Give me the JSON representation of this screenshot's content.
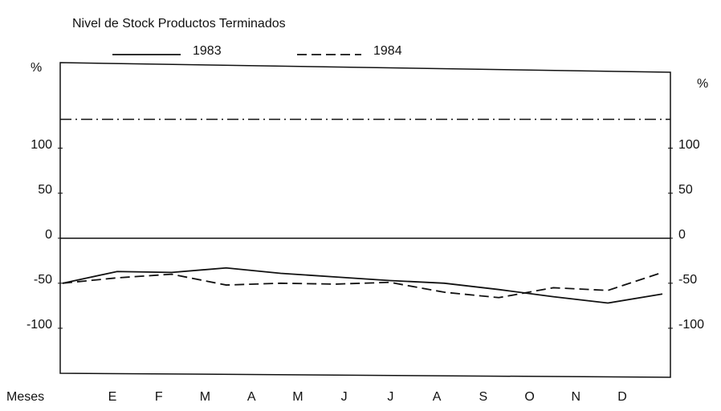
{
  "chart_data": {
    "type": "line",
    "title": "Nivel de Stock Productos Terminados",
    "ylabel": "%",
    "y2label": "%",
    "xlabel": "Meses",
    "categories": [
      "E",
      "F",
      "M",
      "A",
      "M",
      "J",
      "J",
      "A",
      "S",
      "O",
      "N",
      "D"
    ],
    "series": [
      {
        "name": "1983",
        "color": "#111111",
        "style": "solid",
        "values": [
          -50,
          -37,
          -38,
          -33,
          -39,
          -43,
          -47,
          -50,
          -57,
          -65,
          -72,
          -62
        ]
      },
      {
        "name": "1984",
        "color": "#111111",
        "style": "dashed",
        "values": [
          -50,
          -44,
          -40,
          -52,
          -50,
          -51,
          -49,
          -60,
          -66,
          -55,
          -58,
          -38
        ]
      }
    ],
    "reference_lines": [
      {
        "value": 132,
        "style": "dash-dot"
      },
      {
        "value": 0,
        "style": "solid"
      }
    ],
    "ylim": [
      -150,
      195
    ],
    "yticks": [
      -100,
      -50,
      0,
      50,
      100
    ],
    "y2lim": [
      -150,
      195
    ],
    "y2ticks": [
      -100,
      -50,
      0,
      50,
      100
    ],
    "grid": false
  }
}
